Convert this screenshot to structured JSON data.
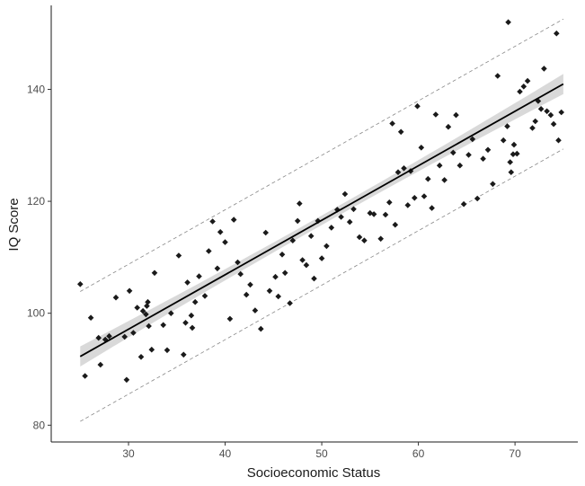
{
  "chart_data": {
    "type": "scatter",
    "xlabel": "Socioeconomic Status",
    "ylabel": "IQ Score",
    "xlim": [
      22,
      76.5
    ],
    "ylim": [
      77,
      155
    ],
    "x_ticks": [
      30,
      40,
      50,
      60,
      70
    ],
    "y_ticks": [
      80,
      100,
      120,
      140
    ],
    "grid": false,
    "colors": {
      "points": "#1a1a1a",
      "fit_line": "#000000",
      "confidence_band": "#cccccc",
      "prediction_bounds": "#888888",
      "axis": "#1a1a1a"
    },
    "fit": {
      "intercept": 67.94,
      "slope": 0.9735,
      "x_range": [
        25,
        75
      ],
      "ci_halfwidth_ends": 1.8,
      "ci_halfwidth_center": 0.85,
      "pi_halfwidth": 11.6,
      "pi_line_style": "dashed"
    },
    "points": [
      {
        "x": 25.0,
        "y": 105.2
      },
      {
        "x": 25.5,
        "y": 88.8
      },
      {
        "x": 26.1,
        "y": 99.2
      },
      {
        "x": 26.9,
        "y": 95.6
      },
      {
        "x": 27.1,
        "y": 90.8
      },
      {
        "x": 27.6,
        "y": 95.3
      },
      {
        "x": 28.0,
        "y": 95.9
      },
      {
        "x": 28.7,
        "y": 102.8
      },
      {
        "x": 29.6,
        "y": 95.8
      },
      {
        "x": 29.8,
        "y": 88.1
      },
      {
        "x": 30.1,
        "y": 104.0
      },
      {
        "x": 30.5,
        "y": 96.5
      },
      {
        "x": 30.9,
        "y": 101.0
      },
      {
        "x": 31.3,
        "y": 92.2
      },
      {
        "x": 31.5,
        "y": 100.4
      },
      {
        "x": 31.8,
        "y": 99.8
      },
      {
        "x": 31.9,
        "y": 101.3
      },
      {
        "x": 32.0,
        "y": 102.0
      },
      {
        "x": 32.1,
        "y": 97.7
      },
      {
        "x": 32.4,
        "y": 93.5
      },
      {
        "x": 32.7,
        "y": 107.2
      },
      {
        "x": 33.6,
        "y": 97.9
      },
      {
        "x": 34.0,
        "y": 93.4
      },
      {
        "x": 34.4,
        "y": 100.0
      },
      {
        "x": 35.2,
        "y": 110.3
      },
      {
        "x": 35.7,
        "y": 92.6
      },
      {
        "x": 35.9,
        "y": 98.3
      },
      {
        "x": 36.1,
        "y": 105.5
      },
      {
        "x": 36.5,
        "y": 99.6
      },
      {
        "x": 36.6,
        "y": 97.4
      },
      {
        "x": 36.9,
        "y": 102.0
      },
      {
        "x": 37.3,
        "y": 106.6
      },
      {
        "x": 37.9,
        "y": 103.1
      },
      {
        "x": 38.3,
        "y": 111.1
      },
      {
        "x": 38.7,
        "y": 116.4
      },
      {
        "x": 39.2,
        "y": 108.0
      },
      {
        "x": 39.5,
        "y": 114.5
      },
      {
        "x": 40.0,
        "y": 112.7
      },
      {
        "x": 40.5,
        "y": 99.0
      },
      {
        "x": 40.9,
        "y": 116.7
      },
      {
        "x": 41.3,
        "y": 109.1
      },
      {
        "x": 41.6,
        "y": 107.0
      },
      {
        "x": 42.2,
        "y": 103.3
      },
      {
        "x": 42.6,
        "y": 105.1
      },
      {
        "x": 43.1,
        "y": 100.5
      },
      {
        "x": 43.7,
        "y": 97.2
      },
      {
        "x": 44.2,
        "y": 114.4
      },
      {
        "x": 44.6,
        "y": 104.0
      },
      {
        "x": 45.2,
        "y": 106.5
      },
      {
        "x": 45.5,
        "y": 103.0
      },
      {
        "x": 45.9,
        "y": 110.5
      },
      {
        "x": 46.2,
        "y": 107.2
      },
      {
        "x": 46.7,
        "y": 101.8
      },
      {
        "x": 47.0,
        "y": 113.0
      },
      {
        "x": 47.5,
        "y": 116.5
      },
      {
        "x": 47.7,
        "y": 119.6
      },
      {
        "x": 48.0,
        "y": 109.5
      },
      {
        "x": 48.4,
        "y": 108.6
      },
      {
        "x": 48.9,
        "y": 113.8
      },
      {
        "x": 49.2,
        "y": 106.2
      },
      {
        "x": 49.6,
        "y": 116.5
      },
      {
        "x": 50.0,
        "y": 109.8
      },
      {
        "x": 50.5,
        "y": 112.0
      },
      {
        "x": 51.0,
        "y": 115.3
      },
      {
        "x": 51.6,
        "y": 118.5
      },
      {
        "x": 52.0,
        "y": 117.2
      },
      {
        "x": 52.4,
        "y": 121.3
      },
      {
        "x": 52.9,
        "y": 116.3
      },
      {
        "x": 53.3,
        "y": 118.6
      },
      {
        "x": 53.9,
        "y": 113.6
      },
      {
        "x": 54.4,
        "y": 113.0
      },
      {
        "x": 55.0,
        "y": 117.9
      },
      {
        "x": 55.4,
        "y": 117.7
      },
      {
        "x": 56.1,
        "y": 113.3
      },
      {
        "x": 56.6,
        "y": 117.6
      },
      {
        "x": 57.0,
        "y": 119.8
      },
      {
        "x": 57.3,
        "y": 133.9
      },
      {
        "x": 57.6,
        "y": 115.8
      },
      {
        "x": 57.9,
        "y": 125.2
      },
      {
        "x": 58.2,
        "y": 132.4
      },
      {
        "x": 58.5,
        "y": 125.9
      },
      {
        "x": 58.9,
        "y": 119.3
      },
      {
        "x": 59.2,
        "y": 125.4
      },
      {
        "x": 59.6,
        "y": 120.6
      },
      {
        "x": 59.9,
        "y": 137.0
      },
      {
        "x": 60.3,
        "y": 129.6
      },
      {
        "x": 60.6,
        "y": 120.9
      },
      {
        "x": 61.0,
        "y": 124.0
      },
      {
        "x": 61.4,
        "y": 118.8
      },
      {
        "x": 61.8,
        "y": 135.5
      },
      {
        "x": 62.2,
        "y": 126.4
      },
      {
        "x": 62.7,
        "y": 123.8
      },
      {
        "x": 63.1,
        "y": 133.3
      },
      {
        "x": 63.6,
        "y": 128.7
      },
      {
        "x": 63.9,
        "y": 135.4
      },
      {
        "x": 64.3,
        "y": 126.4
      },
      {
        "x": 64.7,
        "y": 119.5
      },
      {
        "x": 65.2,
        "y": 128.3
      },
      {
        "x": 65.6,
        "y": 131.1
      },
      {
        "x": 66.1,
        "y": 120.5
      },
      {
        "x": 66.7,
        "y": 127.6
      },
      {
        "x": 67.2,
        "y": 129.2
      },
      {
        "x": 67.7,
        "y": 123.1
      },
      {
        "x": 68.2,
        "y": 142.4
      },
      {
        "x": 68.8,
        "y": 130.9
      },
      {
        "x": 69.2,
        "y": 133.4
      },
      {
        "x": 69.3,
        "y": 152.0
      },
      {
        "x": 69.5,
        "y": 127.0
      },
      {
        "x": 69.6,
        "y": 125.2
      },
      {
        "x": 69.8,
        "y": 128.4
      },
      {
        "x": 69.9,
        "y": 130.1
      },
      {
        "x": 70.2,
        "y": 128.5
      },
      {
        "x": 70.5,
        "y": 139.6
      },
      {
        "x": 70.9,
        "y": 140.5
      },
      {
        "x": 71.3,
        "y": 141.5
      },
      {
        "x": 71.8,
        "y": 133.1
      },
      {
        "x": 72.1,
        "y": 134.3
      },
      {
        "x": 72.4,
        "y": 137.9
      },
      {
        "x": 72.7,
        "y": 136.5
      },
      {
        "x": 73.0,
        "y": 143.7
      },
      {
        "x": 73.3,
        "y": 136.1
      },
      {
        "x": 73.7,
        "y": 135.4
      },
      {
        "x": 74.0,
        "y": 133.8
      },
      {
        "x": 74.3,
        "y": 150.0
      },
      {
        "x": 74.5,
        "y": 130.9
      },
      {
        "x": 74.8,
        "y": 135.9
      }
    ]
  }
}
